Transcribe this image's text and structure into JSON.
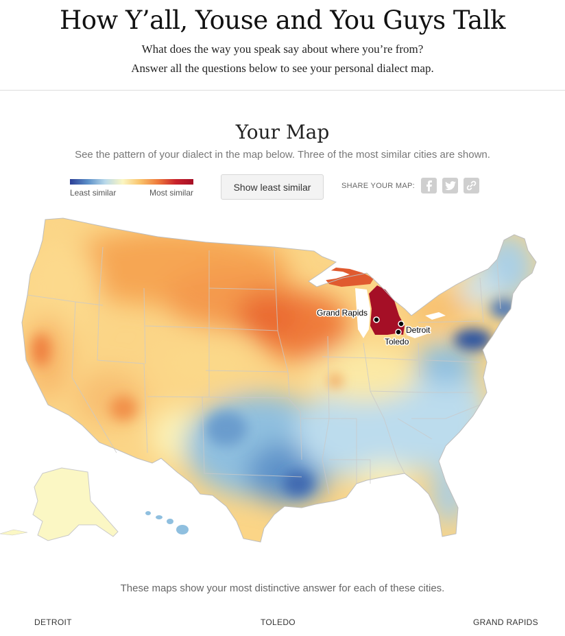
{
  "header": {
    "title": "How Y’all, Youse and You Guys Talk",
    "subtitle_line1": "What does the way you speak say about where you’re from?",
    "subtitle_line2": "Answer all the questions below to see your personal dialect map."
  },
  "map_section": {
    "title": "Your Map",
    "description": "See the pattern of your dialect in the map below. Three of the most similar cities are shown.",
    "legend": {
      "low_label": "Least similar",
      "high_label": "Most similar",
      "colors": [
        "#2c3e96",
        "#5b8fc8",
        "#b9d9ea",
        "#fbf6c2",
        "#f9c26a",
        "#ee7a3c",
        "#c8222b",
        "#a50f26"
      ]
    },
    "toggle_button_label": "Show least similar",
    "share": {
      "label": "SHARE YOUR MAP:",
      "icons": [
        "facebook-icon",
        "twitter-icon",
        "link-icon"
      ]
    }
  },
  "map": {
    "cities": [
      {
        "name": "Grand Rapids"
      },
      {
        "name": "Detroit"
      },
      {
        "name": "Toledo"
      }
    ]
  },
  "bottom": {
    "text": "These maps show your most distinctive answer for each of these cities.",
    "city_headings": [
      "DETROIT",
      "TOLEDO",
      "GRAND RAPIDS"
    ]
  }
}
